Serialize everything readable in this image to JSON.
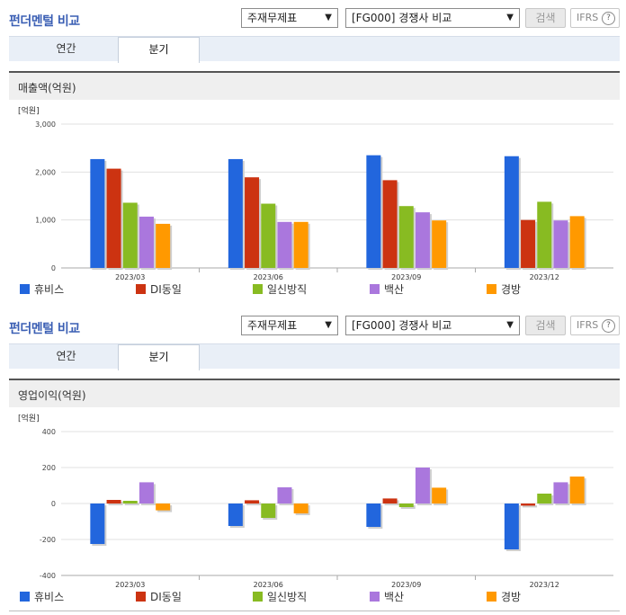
{
  "panels": [
    {
      "header_title": "펀더멘털 비교",
      "select_a": "주재무제표",
      "select_b": "[FG000] 경쟁사 비교",
      "search_label": "검색",
      "ifrs_label": "IFRS",
      "help_mark": "?",
      "tab_annual": "연간",
      "tab_quarter": "분기",
      "section_title": "매출액(억원)"
    },
    {
      "header_title": "펀더멘털 비교",
      "select_a": "주재무제표",
      "select_b": "[FG000] 경쟁사 비교",
      "search_label": "검색",
      "ifrs_label": "IFRS",
      "help_mark": "?",
      "tab_annual": "연간",
      "tab_quarter": "분기",
      "section_title": "영업이익(억원)"
    }
  ],
  "legend_icon": "square-icon",
  "chart_data": [
    {
      "type": "bar",
      "unit_label": "[억원]",
      "categories": [
        "2023/03",
        "2023/06",
        "2023/09",
        "2023/12"
      ],
      "yticks": [
        "3,000",
        "2,000",
        "1,000",
        "0"
      ],
      "ylim": [
        0,
        3000
      ],
      "grid": true,
      "legend": "bottom",
      "series": [
        {
          "name": "휴비스",
          "color": "#2266dd",
          "values": [
            2270,
            2270,
            2350,
            2330
          ]
        },
        {
          "name": "DI동일",
          "color": "#cc3311",
          "values": [
            2070,
            1890,
            1830,
            1000
          ]
        },
        {
          "name": "일신방직",
          "color": "#88bb22",
          "values": [
            1360,
            1340,
            1290,
            1380
          ]
        },
        {
          "name": "백산",
          "color": "#aa77dd",
          "values": [
            1070,
            960,
            1160,
            990
          ]
        },
        {
          "name": "경방",
          "color": "#ff9900",
          "values": [
            920,
            960,
            990,
            1080
          ]
        }
      ]
    },
    {
      "type": "bar",
      "unit_label": "[억원]",
      "categories": [
        "2023/03",
        "2023/06",
        "2023/09",
        "2023/12"
      ],
      "yticks": [
        "400",
        "200",
        "0",
        "-200",
        "-400"
      ],
      "ylim": [
        -400,
        400
      ],
      "grid": true,
      "legend": "bottom",
      "series": [
        {
          "name": "휴비스",
          "color": "#2266dd",
          "values": [
            -225,
            -125,
            -130,
            -255
          ]
        },
        {
          "name": "DI동일",
          "color": "#cc3311",
          "values": [
            20,
            18,
            28,
            -12
          ]
        },
        {
          "name": "일신방직",
          "color": "#88bb22",
          "values": [
            15,
            -80,
            -20,
            55
          ]
        },
        {
          "name": "백산",
          "color": "#aa77dd",
          "values": [
            118,
            90,
            200,
            118
          ]
        },
        {
          "name": "경방",
          "color": "#ff9900",
          "values": [
            -38,
            -55,
            88,
            150
          ]
        }
      ]
    }
  ]
}
